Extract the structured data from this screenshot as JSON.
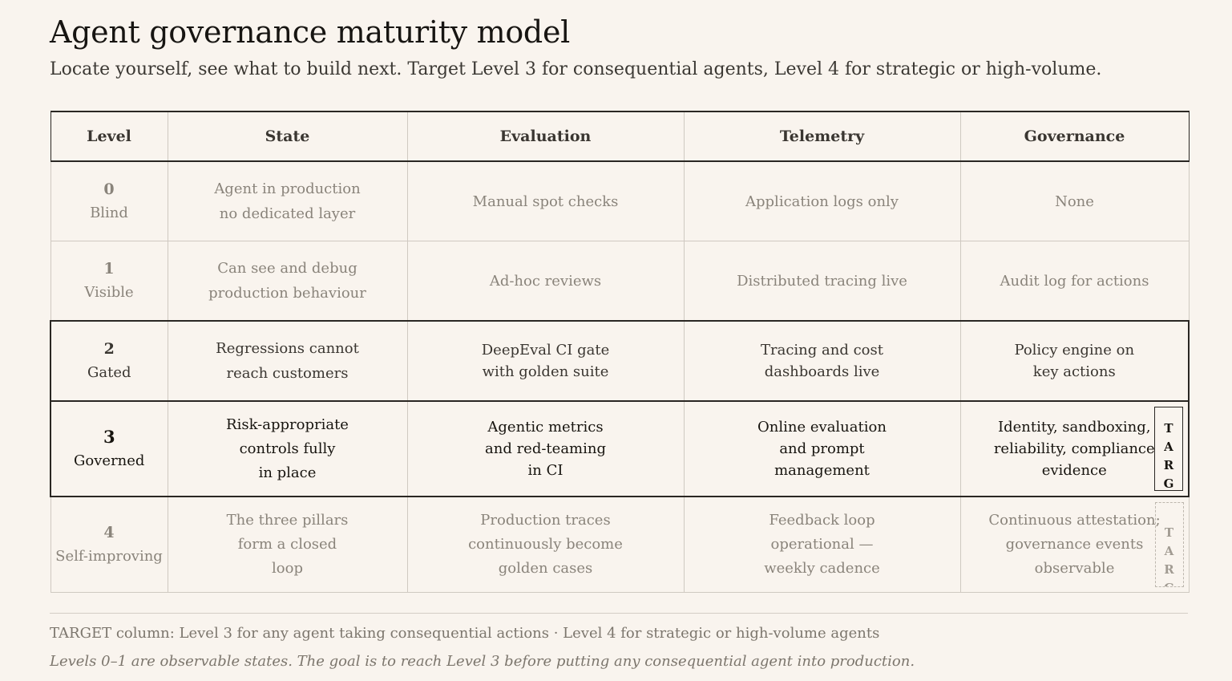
{
  "title": "Agent governance maturity model",
  "subtitle": "Locate yourself, see what to build next. Target Level 3 for consequential agents, Level 4 for strategic or high-volume.",
  "headers": {
    "level": "Level",
    "state": "State",
    "evaluation": "Evaluation",
    "telemetry": "Telemetry",
    "governance": "Governance"
  },
  "rows": [
    {
      "num": "0",
      "name": "Blind",
      "state": [
        "Agent in production",
        "no dedicated layer"
      ],
      "evaluation": [
        "Manual spot checks"
      ],
      "telemetry": [
        "Application logs only"
      ],
      "governance": [
        "None"
      ]
    },
    {
      "num": "1",
      "name": "Visible",
      "state": [
        "Can see and debug",
        "production behaviour"
      ],
      "evaluation": [
        "Ad-hoc reviews"
      ],
      "telemetry": [
        "Distributed tracing live"
      ],
      "governance": [
        "Audit log for actions"
      ]
    },
    {
      "num": "2",
      "name": "Gated",
      "state": [
        "Regressions cannot",
        "reach customers"
      ],
      "evaluation": [
        "DeepEval CI gate",
        "with golden suite"
      ],
      "telemetry": [
        "Tracing and cost",
        "dashboards live"
      ],
      "governance": [
        "Policy engine on",
        "key actions"
      ]
    },
    {
      "num": "3",
      "name": "Governed",
      "state": [
        "Risk-appropriate",
        "controls fully",
        "in place"
      ],
      "evaluation": [
        "Agentic metrics",
        "and red-teaming",
        "in CI"
      ],
      "telemetry": [
        "Online evaluation",
        "and prompt",
        "management"
      ],
      "governance": [
        "Identity, sandboxing,",
        "reliability, compliance",
        "evidence"
      ],
      "target_tag": [
        "T",
        "A",
        "R",
        "G"
      ]
    },
    {
      "num": "4",
      "name": "Self-improving",
      "state": [
        "The three pillars",
        "form a closed",
        "loop"
      ],
      "evaluation": [
        "Production traces",
        "continuously become",
        "golden cases"
      ],
      "telemetry": [
        "Feedback loop",
        "operational —",
        "weekly cadence"
      ],
      "governance": [
        "Continuous attestation;",
        "governance events",
        "observable"
      ],
      "target_tag": [
        "T",
        "A",
        "R",
        "G"
      ]
    }
  ],
  "footer": {
    "note1": "TARGET column: Level 3 for any agent taking consequential actions · Level 4 for strategic or high-volume agents",
    "note2": "Levels 0–1 are observable states. The goal is to reach Level 3 before putting any consequential agent into production."
  }
}
